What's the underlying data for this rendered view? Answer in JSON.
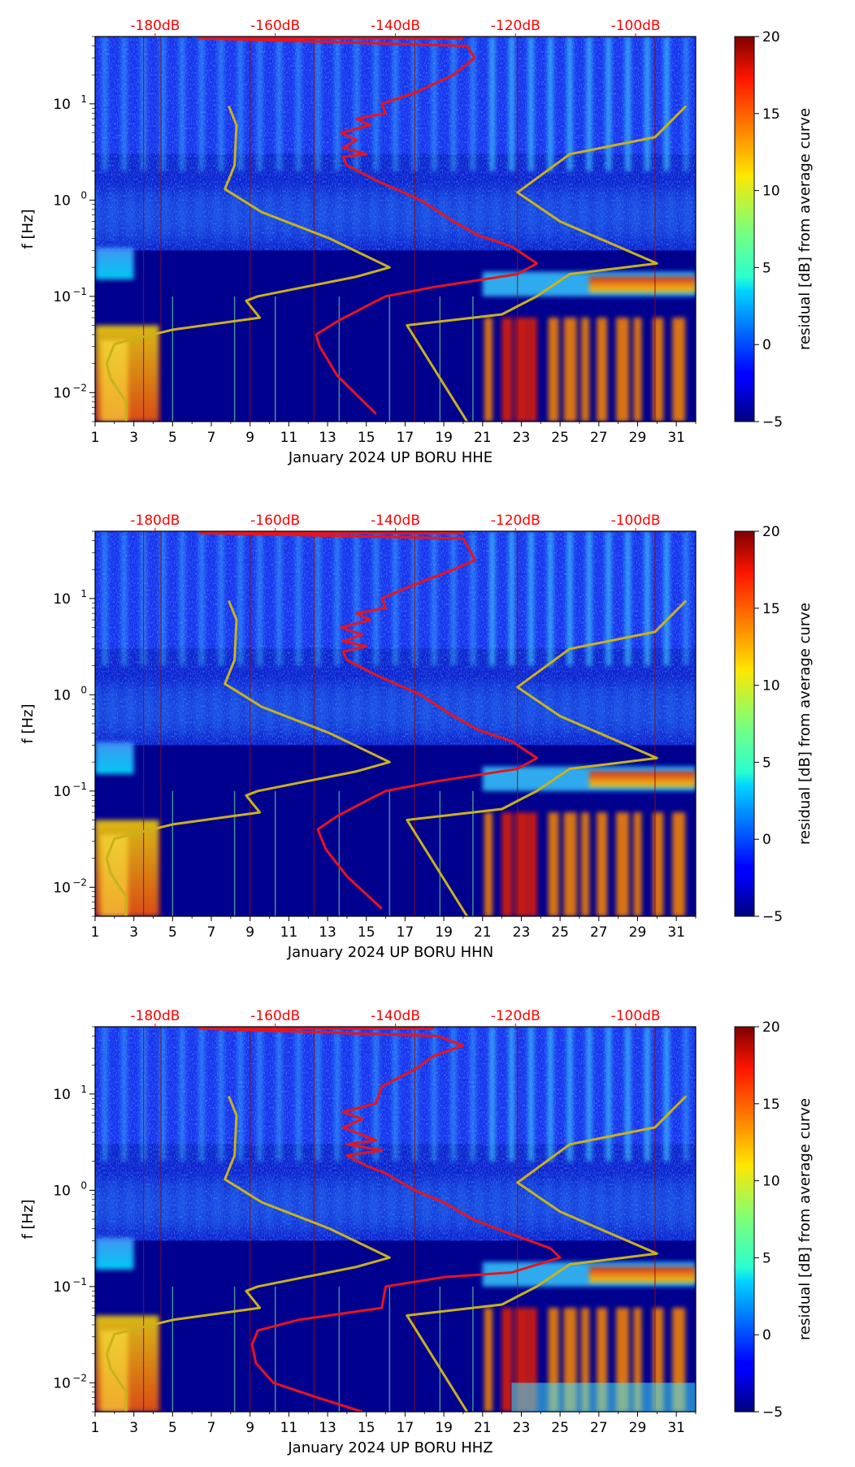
{
  "figure": {
    "x_ticks": [
      "1",
      "3",
      "5",
      "7",
      "9",
      "11",
      "13",
      "15",
      "17",
      "19",
      "21",
      "23",
      "25",
      "27",
      "29",
      "31"
    ],
    "y_ticks": [
      {
        "base": "10",
        "exp": "1"
      },
      {
        "base": "10",
        "exp": "0"
      },
      {
        "base": "10",
        "exp": "−1"
      },
      {
        "base": "10",
        "exp": "−2"
      }
    ],
    "y_label": "f [Hz]",
    "top_db_labels": [
      "-180dB",
      "-160dB",
      "-140dB",
      "-120dB",
      "-100dB"
    ],
    "colorbar_ticks": [
      "20",
      "15",
      "10",
      "5",
      "0",
      "−5"
    ],
    "colorbar_label": "residual [dB] from average curve",
    "colors": {
      "red_curve": "#e8141c",
      "yellow_curve": "#c8b21e",
      "db_label": "#ff0000",
      "background": "#00008f"
    }
  },
  "chart_data": [
    {
      "type": "heatmap",
      "title": "",
      "xlabel": "January 2024 UP BORU  HHE",
      "ylabel": "f [Hz]",
      "xlim": [
        1,
        32
      ],
      "ylim": [
        0.005,
        50
      ],
      "y_scale": "log",
      "color_range": [
        -5,
        20
      ],
      "colormap": "jet",
      "colorbar_label": "residual [dB] from average curve",
      "top_axis": {
        "labels": [
          "-180dB",
          "-160dB",
          "-140dB",
          "-120dB",
          "-100dB"
        ],
        "db_values": [
          -180,
          -160,
          -140,
          -120,
          -100
        ]
      },
      "series": [
        {
          "name": "red-curve",
          "color": "#e8141c",
          "points": [
            [
              15.5,
              0.006
            ],
            [
              13.5,
              0.015
            ],
            [
              12.6,
              0.03
            ],
            [
              12.4,
              0.04
            ],
            [
              13.5,
              0.055
            ],
            [
              15.3,
              0.085
            ],
            [
              16.0,
              0.1
            ],
            [
              18.5,
              0.125
            ],
            [
              22.8,
              0.17
            ],
            [
              23.8,
              0.22
            ],
            [
              22.5,
              0.33
            ],
            [
              20.8,
              0.43
            ],
            [
              19.5,
              0.6
            ],
            [
              17.8,
              1.0
            ],
            [
              15.5,
              1.6
            ],
            [
              14.0,
              2.3
            ],
            [
              13.8,
              2.8
            ],
            [
              15.0,
              3.0
            ],
            [
              13.8,
              3.5
            ],
            [
              14.5,
              4.2
            ],
            [
              13.7,
              5.0
            ],
            [
              15.2,
              6.0
            ],
            [
              14.5,
              7.0
            ],
            [
              16.0,
              8.0
            ],
            [
              15.8,
              10.0
            ],
            [
              17.5,
              13.0
            ],
            [
              19.5,
              20.0
            ],
            [
              20.6,
              30.0
            ],
            [
              20.2,
              40.0
            ],
            [
              6.4,
              48.0
            ],
            [
              20.0,
              48.0
            ]
          ]
        },
        {
          "name": "yellow-curve",
          "color": "#c8b21e",
          "points": [
            [
              2.6,
              0.005
            ],
            [
              2.6,
              0.008
            ],
            [
              1.8,
              0.014
            ],
            [
              1.6,
              0.02
            ],
            [
              2.0,
              0.032
            ],
            [
              3.5,
              0.038
            ],
            [
              5.0,
              0.045
            ],
            [
              9.5,
              0.06
            ],
            [
              8.8,
              0.09
            ],
            [
              9.4,
              0.1
            ],
            [
              14.5,
              0.16
            ],
            [
              16.2,
              0.2
            ],
            [
              13.1,
              0.4
            ],
            [
              9.6,
              0.75
            ],
            [
              7.7,
              1.3
            ],
            [
              8.2,
              2.3
            ],
            [
              8.3,
              6.0
            ],
            [
              7.9,
              9.5
            ],
            [
              null,
              null
            ],
            [
              20.2,
              0.005
            ],
            [
              17.1,
              0.05
            ],
            [
              22.0,
              0.065
            ],
            [
              23.8,
              0.1
            ],
            [
              25.5,
              0.17
            ],
            [
              30.0,
              0.22
            ],
            [
              25.0,
              0.6
            ],
            [
              22.8,
              1.2
            ],
            [
              25.5,
              3.0
            ],
            [
              29.9,
              4.5
            ],
            [
              31.5,
              9.5
            ]
          ]
        }
      ]
    },
    {
      "type": "heatmap",
      "title": "",
      "xlabel": "January 2024 UP BORU  HHN",
      "ylabel": "f [Hz]",
      "xlim": [
        1,
        32
      ],
      "ylim": [
        0.005,
        50
      ],
      "y_scale": "log",
      "color_range": [
        -5,
        20
      ],
      "colormap": "jet",
      "colorbar_label": "residual [dB] from average curve",
      "top_axis": {
        "labels": [
          "-180dB",
          "-160dB",
          "-140dB",
          "-120dB",
          "-100dB"
        ],
        "db_values": [
          -180,
          -160,
          -140,
          -120,
          -100
        ]
      },
      "series": [
        {
          "name": "red-curve",
          "color": "#e8141c",
          "points": [
            [
              15.8,
              0.006
            ],
            [
              14.0,
              0.013
            ],
            [
              12.9,
              0.025
            ],
            [
              12.5,
              0.04
            ],
            [
              13.5,
              0.055
            ],
            [
              15.3,
              0.085
            ],
            [
              16.0,
              0.1
            ],
            [
              18.5,
              0.125
            ],
            [
              22.8,
              0.17
            ],
            [
              23.8,
              0.22
            ],
            [
              22.5,
              0.33
            ],
            [
              20.8,
              0.43
            ],
            [
              19.5,
              0.6
            ],
            [
              17.8,
              1.0
            ],
            [
              15.5,
              1.6
            ],
            [
              14.0,
              2.3
            ],
            [
              13.8,
              2.8
            ],
            [
              15.0,
              3.2
            ],
            [
              13.8,
              3.6
            ],
            [
              14.8,
              4.2
            ],
            [
              13.7,
              5.0
            ],
            [
              15.2,
              6.0
            ],
            [
              14.5,
              7.0
            ],
            [
              16.0,
              8.0
            ],
            [
              15.8,
              10.0
            ],
            [
              17.5,
              14.0
            ],
            [
              19.5,
              20.0
            ],
            [
              20.6,
              25.0
            ],
            [
              20.3,
              33.0
            ],
            [
              20.0,
              42.0
            ],
            [
              6.4,
              48.0
            ],
            [
              20.0,
              48.0
            ]
          ]
        },
        {
          "name": "yellow-curve",
          "color": "#c8b21e",
          "points": [
            [
              2.6,
              0.005
            ],
            [
              2.6,
              0.008
            ],
            [
              1.8,
              0.014
            ],
            [
              1.6,
              0.02
            ],
            [
              2.0,
              0.032
            ],
            [
              3.5,
              0.038
            ],
            [
              5.0,
              0.045
            ],
            [
              9.5,
              0.06
            ],
            [
              8.8,
              0.09
            ],
            [
              9.4,
              0.1
            ],
            [
              14.5,
              0.16
            ],
            [
              16.2,
              0.2
            ],
            [
              13.1,
              0.4
            ],
            [
              9.6,
              0.75
            ],
            [
              7.7,
              1.3
            ],
            [
              8.2,
              2.3
            ],
            [
              8.3,
              6.0
            ],
            [
              7.9,
              9.5
            ],
            [
              null,
              null
            ],
            [
              20.2,
              0.005
            ],
            [
              17.1,
              0.05
            ],
            [
              22.0,
              0.065
            ],
            [
              23.8,
              0.1
            ],
            [
              25.5,
              0.17
            ],
            [
              30.0,
              0.22
            ],
            [
              25.0,
              0.6
            ],
            [
              22.8,
              1.2
            ],
            [
              25.5,
              3.0
            ],
            [
              29.9,
              4.5
            ],
            [
              31.5,
              9.5
            ]
          ]
        }
      ]
    },
    {
      "type": "heatmap",
      "title": "",
      "xlabel": "January 2024 UP BORU  HHZ",
      "ylabel": "f [Hz]",
      "xlim": [
        1,
        32
      ],
      "ylim": [
        0.005,
        50
      ],
      "y_scale": "log",
      "color_range": [
        -5,
        20
      ],
      "colormap": "jet",
      "colorbar_label": "residual [dB] from average curve",
      "top_axis": {
        "labels": [
          "-180dB",
          "-160dB",
          "-140dB",
          "-120dB",
          "-100dB"
        ],
        "db_values": [
          -180,
          -160,
          -140,
          -120,
          -100
        ]
      },
      "series": [
        {
          "name": "red-curve",
          "color": "#e8141c",
          "points": [
            [
              14.8,
              0.005
            ],
            [
              12.5,
              0.007
            ],
            [
              10.2,
              0.01
            ],
            [
              9.3,
              0.016
            ],
            [
              9.1,
              0.025
            ],
            [
              9.4,
              0.035
            ],
            [
              11.5,
              0.045
            ],
            [
              15.8,
              0.06
            ],
            [
              16.0,
              0.1
            ],
            [
              19.0,
              0.125
            ],
            [
              22.5,
              0.14
            ],
            [
              25.0,
              0.2
            ],
            [
              24.5,
              0.25
            ],
            [
              22.0,
              0.38
            ],
            [
              20.5,
              0.5
            ],
            [
              19.0,
              0.75
            ],
            [
              17.5,
              1.0
            ],
            [
              16.0,
              1.5
            ],
            [
              15.0,
              1.8
            ],
            [
              14.0,
              2.3
            ],
            [
              15.8,
              2.6
            ],
            [
              14.0,
              3.0
            ],
            [
              15.5,
              3.3
            ],
            [
              13.8,
              4.5
            ],
            [
              14.8,
              5.5
            ],
            [
              13.8,
              6.5
            ],
            [
              15.5,
              8.0
            ],
            [
              15.8,
              12.0
            ],
            [
              17.5,
              18.0
            ],
            [
              18.5,
              25.0
            ],
            [
              20.0,
              32.0
            ],
            [
              18.7,
              40.0
            ],
            [
              6.4,
              48.0
            ],
            [
              18.5,
              48.0
            ]
          ]
        },
        {
          "name": "yellow-curve",
          "color": "#c8b21e",
          "points": [
            [
              2.6,
              0.005
            ],
            [
              2.6,
              0.008
            ],
            [
              1.8,
              0.014
            ],
            [
              1.6,
              0.02
            ],
            [
              2.0,
              0.032
            ],
            [
              3.5,
              0.038
            ],
            [
              5.0,
              0.045
            ],
            [
              9.5,
              0.06
            ],
            [
              8.8,
              0.09
            ],
            [
              9.4,
              0.1
            ],
            [
              14.5,
              0.16
            ],
            [
              16.2,
              0.2
            ],
            [
              13.1,
              0.4
            ],
            [
              9.6,
              0.75
            ],
            [
              7.7,
              1.3
            ],
            [
              8.2,
              2.3
            ],
            [
              8.3,
              6.0
            ],
            [
              7.9,
              9.5
            ],
            [
              null,
              null
            ],
            [
              20.2,
              0.005
            ],
            [
              17.1,
              0.05
            ],
            [
              22.0,
              0.065
            ],
            [
              23.8,
              0.1
            ],
            [
              25.5,
              0.17
            ],
            [
              30.0,
              0.22
            ],
            [
              25.0,
              0.6
            ],
            [
              22.8,
              1.2
            ],
            [
              25.5,
              3.0
            ],
            [
              29.9,
              4.5
            ],
            [
              31.5,
              9.5
            ]
          ]
        }
      ]
    }
  ]
}
